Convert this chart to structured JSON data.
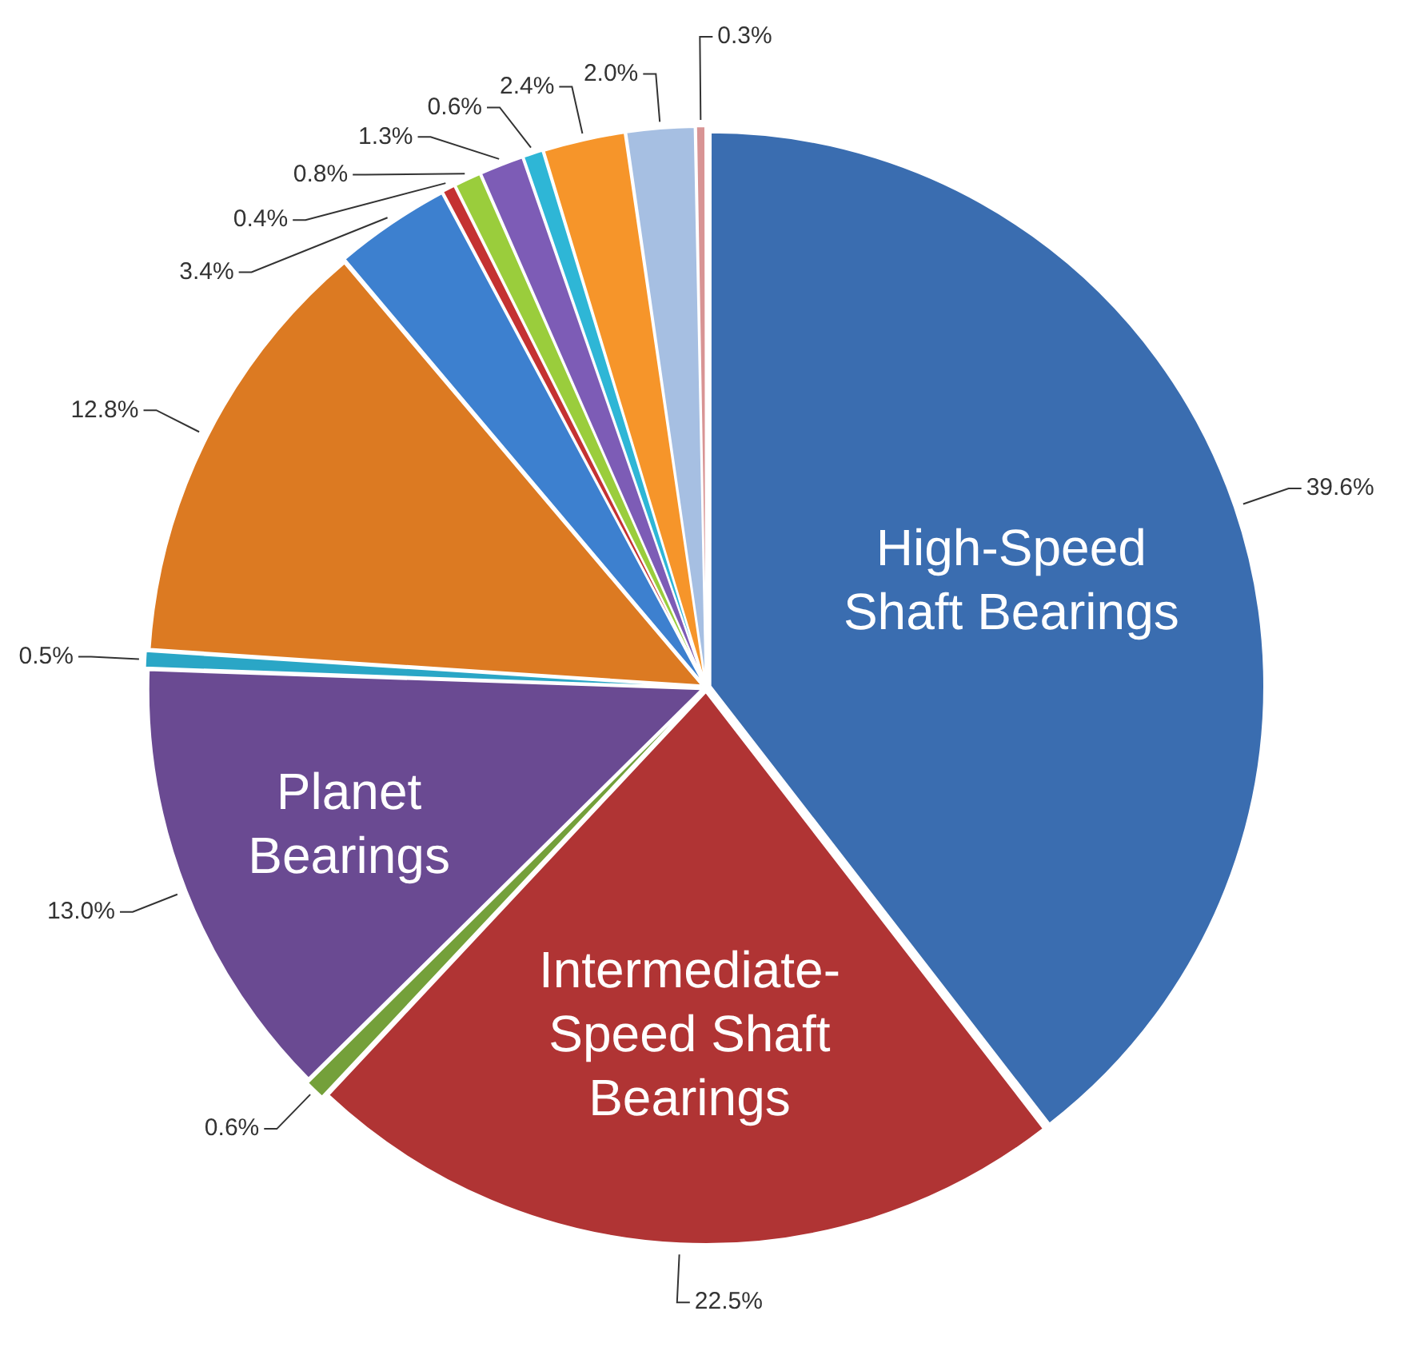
{
  "chart_data": {
    "type": "pie",
    "categories": [
      "High-Speed Shaft Bearings",
      "Intermediate-Speed Shaft Bearings",
      null,
      "Planet Bearings",
      null,
      null,
      null,
      null,
      null,
      null,
      null,
      null,
      null,
      null
    ],
    "values": [
      39.6,
      22.5,
      0.6,
      13.0,
      0.5,
      12.8,
      3.4,
      0.4,
      0.8,
      1.3,
      0.6,
      2.4,
      2.0,
      0.3
    ],
    "value_labels": [
      "39.6%",
      "22.5%",
      "0.6%",
      "13.0%",
      "0.5%",
      "12.8%",
      "3.4%",
      "0.4%",
      "0.8%",
      "1.3%",
      "0.6%",
      "2.4%",
      "2.0%",
      "0.3%"
    ],
    "colors": [
      "#3a6db0",
      "#b03434",
      "#74a03a",
      "#6a4a92",
      "#2aa6c6",
      "#dc7a22",
      "#3d80cf",
      "#c43232",
      "#9acd3c",
      "#7d5cb6",
      "#2eb6d6",
      "#f6952a",
      "#a6bfe2",
      "#d89494"
    ],
    "legend": false
  }
}
